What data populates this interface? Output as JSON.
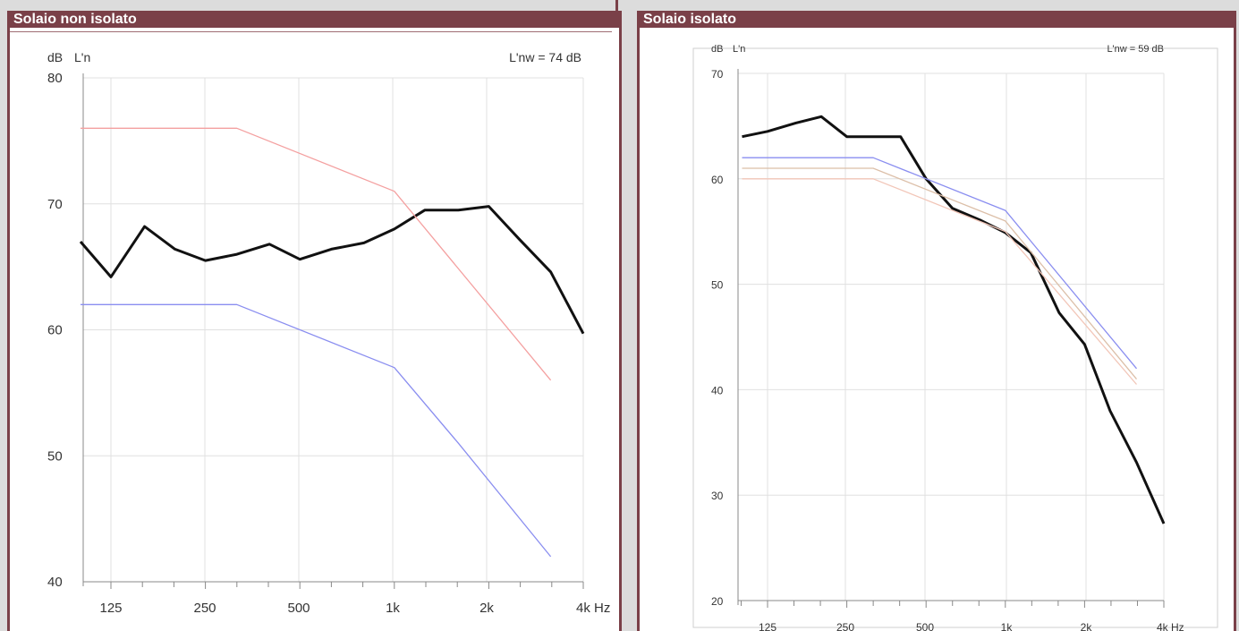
{
  "colors": {
    "header": "#7a4048",
    "measured": "#111111",
    "reference_pink": "#f4a0a0",
    "reference_blue": "#8a8ef0",
    "reference_tan": "#dcbfa8"
  },
  "chart_data": [
    {
      "type": "line",
      "panel_title": "Solaio non isolato",
      "ylabel": "dB",
      "series_label": "L'n",
      "annotation": "L'nw = 74 dB",
      "xlabel_unit": "Hz",
      "x_tick_labels": [
        "125",
        "250",
        "500",
        "1k",
        "2k",
        "4k"
      ],
      "y_tick_labels": [
        "80",
        "70",
        "60",
        "50",
        "40"
      ],
      "ylim": [
        40,
        80
      ],
      "xlim_octaves": [
        -0.33,
        5.0
      ],
      "grid": true,
      "series": [
        {
          "color": "#111111",
          "style": "measured",
          "x_hz": [
            100,
            125,
            160,
            200,
            250,
            315,
            400,
            500,
            630,
            800,
            1000,
            1250,
            1600,
            2000,
            2500,
            3150,
            4000
          ],
          "y": [
            67,
            64.2,
            68.2,
            66.4,
            65.5,
            66,
            66.8,
            65.6,
            66.4,
            66.9,
            68,
            69.5,
            69.5,
            69.8,
            67.2,
            64.6,
            59.7
          ]
        },
        {
          "color": "#f4a0a0",
          "style": "reference",
          "x_hz": [
            100,
            315,
            1000,
            3150
          ],
          "y": [
            76,
            76,
            71,
            56
          ]
        },
        {
          "color": "#8a8ef0",
          "style": "reference",
          "x_hz": [
            100,
            315,
            1000,
            1600,
            3150
          ],
          "y": [
            62,
            62,
            57,
            51,
            42
          ]
        }
      ]
    },
    {
      "type": "line",
      "panel_title": "Solaio isolato",
      "ylabel": "dB",
      "series_label": "L'n",
      "annotation": "L'nw = 59 dB",
      "xlabel_unit": "Hz",
      "x_tick_labels": [
        "125",
        "250",
        "500",
        "1k",
        "2k",
        "4k"
      ],
      "y_tick_labels": [
        "70",
        "60",
        "50",
        "40",
        "30",
        "20"
      ],
      "ylim": [
        20,
        70
      ],
      "xlim_octaves": [
        -0.33,
        5.0
      ],
      "grid": true,
      "series": [
        {
          "color": "#111111",
          "style": "measured",
          "x_hz": [
            100,
            125,
            160,
            200,
            250,
            315,
            400,
            500,
            630,
            800,
            1000,
            1250,
            1600,
            2000,
            2500,
            3150,
            4000
          ],
          "y": [
            64,
            64.5,
            65.3,
            65.9,
            64,
            64,
            64,
            60,
            57.2,
            56.1,
            54.9,
            53,
            47.3,
            44.3,
            38,
            33.1,
            27.3
          ]
        },
        {
          "color": "#8a8ef0",
          "style": "reference",
          "x_hz": [
            100,
            315,
            1000,
            3150
          ],
          "y": [
            62,
            62,
            57,
            42
          ]
        },
        {
          "color": "#dcbfa8",
          "style": "reference",
          "x_hz": [
            100,
            315,
            1000,
            3150
          ],
          "y": [
            61,
            61,
            56,
            41
          ]
        },
        {
          "color": "#f2c6b8",
          "style": "reference",
          "x_hz": [
            100,
            315,
            1000,
            3150
          ],
          "y": [
            60,
            60,
            55,
            40.5
          ]
        }
      ]
    }
  ]
}
